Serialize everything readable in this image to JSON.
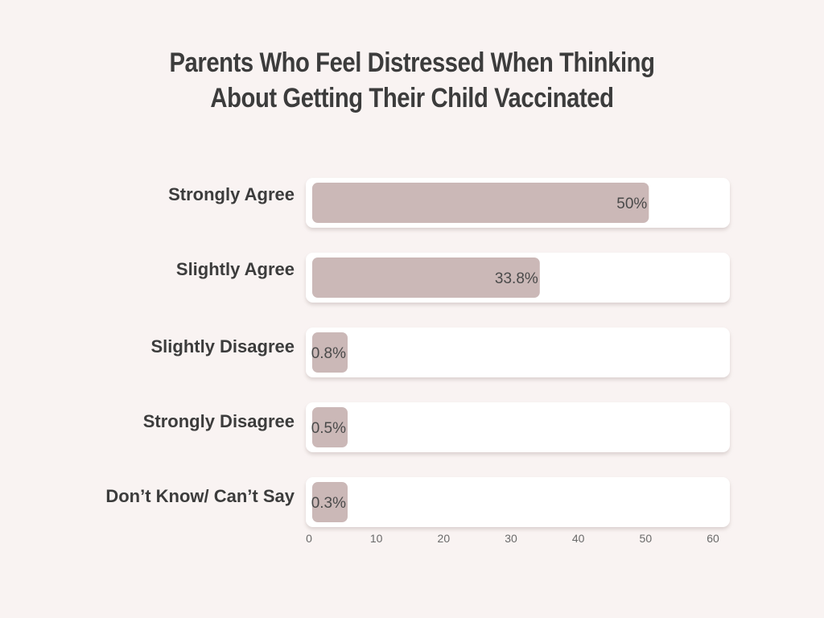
{
  "chart_data": {
    "type": "bar",
    "orientation": "horizontal",
    "title": [
      "Parents Who Feel Distressed When Thinking",
      "About Getting Their Child Vaccinated"
    ],
    "categories": [
      "Strongly Agree",
      "Slightly Agree",
      "Slightly Disagree",
      "Strongly Disagree",
      "Don’t Know/ Can’t Say"
    ],
    "values": [
      50,
      33.8,
      0.8,
      0.5,
      0.3
    ],
    "value_labels": [
      "50%",
      "33.8%",
      "0.8%",
      "0.5%",
      "0.3%"
    ],
    "x_ticks": [
      "0",
      "10",
      "20",
      "30",
      "40",
      "50",
      "60"
    ],
    "xlim": [
      0,
      60
    ],
    "grid": false,
    "legend": "none",
    "colors": {
      "bar": "#cbb8b7",
      "track": "#ffffff",
      "background": "#f9f3f2",
      "text": "#3c3c3c"
    }
  }
}
